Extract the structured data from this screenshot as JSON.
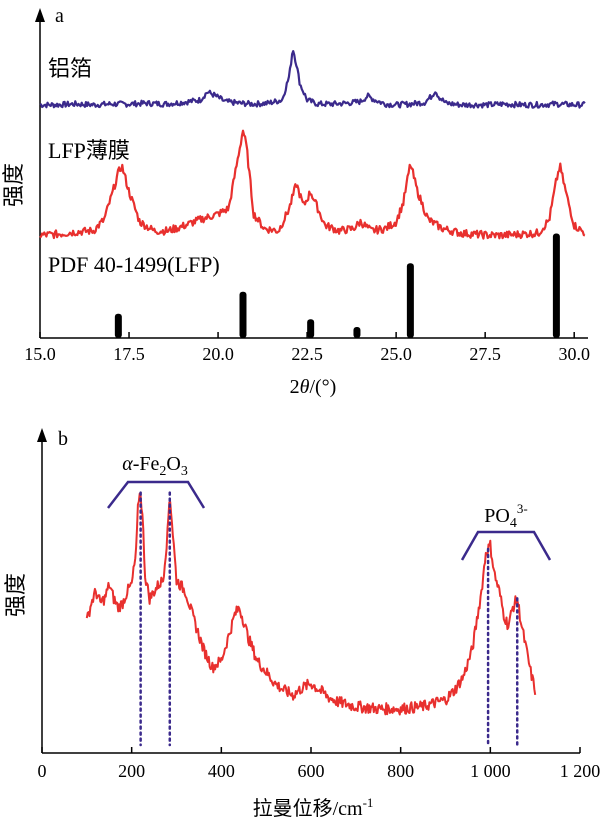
{
  "chart_data": [
    {
      "panel_label": "a",
      "type": "line",
      "xlabel_prefix": "2",
      "xlabel_symbol": "θ",
      "xlabel_suffix": "/(°)",
      "ylabel": "强度",
      "xlim": [
        15.0,
        30.5
      ],
      "x_ticks": [
        "15.0",
        "17.5",
        "20.0",
        "22.5",
        "25.0",
        "27.5",
        "30.0"
      ],
      "x_tick_values": [
        15.0,
        17.5,
        20.0,
        22.5,
        25.0,
        27.5,
        30.0
      ],
      "series": [
        {
          "name": "铝箔",
          "color": "#3b2a8c",
          "x": [
            15.0,
            15.5,
            16.0,
            16.5,
            17.0,
            17.5,
            18.0,
            18.5,
            19.0,
            19.5,
            19.7,
            19.9,
            20.2,
            20.6,
            21.0,
            21.4,
            21.8,
            22.0,
            22.1,
            22.2,
            22.3,
            22.5,
            22.8,
            23.2,
            23.6,
            24.0,
            24.2,
            24.4,
            24.7,
            25.0,
            25.4,
            25.8,
            26.0,
            26.1,
            26.2,
            26.4,
            26.8,
            27.2,
            27.6,
            28.0,
            28.5,
            29.0,
            29.5,
            30.0,
            30.3
          ],
          "y": [
            0.04,
            0.04,
            0.05,
            0.04,
            0.05,
            0.05,
            0.06,
            0.05,
            0.07,
            0.1,
            0.2,
            0.16,
            0.08,
            0.06,
            0.05,
            0.06,
            0.1,
            0.4,
            0.75,
            0.55,
            0.3,
            0.1,
            0.05,
            0.05,
            0.06,
            0.08,
            0.15,
            0.1,
            0.05,
            0.04,
            0.05,
            0.07,
            0.15,
            0.22,
            0.14,
            0.06,
            0.04,
            0.04,
            0.04,
            0.05,
            0.04,
            0.04,
            0.05,
            0.04,
            0.04
          ]
        },
        {
          "name": "LFP薄膜",
          "color": "#e8302e",
          "x": [
            15.0,
            15.5,
            16.0,
            16.5,
            16.8,
            17.0,
            17.2,
            17.3,
            17.5,
            17.8,
            18.2,
            18.6,
            19.0,
            19.5,
            20.0,
            20.3,
            20.5,
            20.7,
            20.8,
            21.0,
            21.3,
            21.7,
            22.0,
            22.2,
            22.4,
            22.6,
            22.8,
            23.0,
            23.4,
            23.8,
            24.0,
            24.3,
            24.7,
            25.0,
            25.2,
            25.4,
            25.6,
            25.9,
            26.3,
            26.8,
            27.2,
            27.6,
            28.0,
            28.5,
            29.0,
            29.3,
            29.5,
            29.6,
            29.8,
            30.0,
            30.3
          ],
          "y": [
            0.06,
            0.07,
            0.09,
            0.1,
            0.2,
            0.4,
            0.62,
            0.68,
            0.45,
            0.18,
            0.1,
            0.1,
            0.14,
            0.2,
            0.25,
            0.3,
            0.65,
            1.0,
            0.85,
            0.25,
            0.12,
            0.1,
            0.3,
            0.52,
            0.32,
            0.45,
            0.3,
            0.15,
            0.1,
            0.12,
            0.18,
            0.1,
            0.12,
            0.18,
            0.35,
            0.7,
            0.45,
            0.2,
            0.12,
            0.08,
            0.07,
            0.06,
            0.06,
            0.07,
            0.08,
            0.2,
            0.55,
            0.68,
            0.4,
            0.15,
            0.08
          ]
        }
      ],
      "reference": {
        "label": "PDF 40-1499(LFP)",
        "x": [
          17.2,
          20.7,
          22.6,
          23.9,
          25.4,
          29.5
        ],
        "y": [
          0.22,
          0.42,
          0.17,
          0.1,
          0.68,
          0.95
        ]
      }
    },
    {
      "panel_label": "b",
      "type": "line",
      "xlabel": "拉曼位移/cm",
      "xlabel_sup": "-1",
      "ylabel": "强度",
      "xlim": [
        0,
        1200
      ],
      "x_ticks": [
        "0",
        "200",
        "400",
        "600",
        "800",
        "1 000",
        "1 200"
      ],
      "x_tick_values": [
        0,
        200,
        400,
        600,
        800,
        1000,
        1200
      ],
      "series": [
        {
          "name": "",
          "color": "#e8302e",
          "x": [
            100,
            110,
            120,
            130,
            140,
            150,
            160,
            170,
            180,
            190,
            200,
            210,
            215,
            220,
            225,
            230,
            240,
            250,
            260,
            270,
            280,
            285,
            290,
            300,
            320,
            340,
            360,
            380,
            400,
            420,
            430,
            440,
            450,
            460,
            480,
            500,
            520,
            540,
            560,
            580,
            600,
            620,
            640,
            660,
            680,
            700,
            750,
            800,
            850,
            900,
            920,
            940,
            960,
            980,
            990,
            1000,
            1010,
            1020,
            1030,
            1040,
            1050,
            1060,
            1070,
            1080,
            1090,
            1100
          ],
          "y": [
            0.42,
            0.5,
            0.55,
            0.5,
            0.52,
            0.58,
            0.52,
            0.48,
            0.5,
            0.55,
            0.58,
            0.72,
            0.95,
            0.98,
            0.85,
            0.62,
            0.52,
            0.55,
            0.58,
            0.6,
            0.8,
            0.98,
            0.85,
            0.6,
            0.55,
            0.42,
            0.3,
            0.22,
            0.25,
            0.38,
            0.45,
            0.48,
            0.42,
            0.35,
            0.25,
            0.2,
            0.15,
            0.12,
            0.1,
            0.13,
            0.15,
            0.12,
            0.09,
            0.07,
            0.06,
            0.05,
            0.04,
            0.04,
            0.05,
            0.08,
            0.12,
            0.18,
            0.3,
            0.55,
            0.72,
            0.75,
            0.62,
            0.55,
            0.45,
            0.4,
            0.48,
            0.52,
            0.4,
            0.3,
            0.2,
            0.12
          ]
        }
      ],
      "groups": [
        {
          "label_prefix": "α",
          "label_mid": "-Fe",
          "sub1": "2",
          "label_mid2": "O",
          "sub2": "3",
          "peaks": [
            220,
            285
          ]
        },
        {
          "label_prefix": "PO",
          "sub1": "4",
          "sup": "3-",
          "peaks": [
            995,
            1060
          ]
        }
      ]
    }
  ]
}
